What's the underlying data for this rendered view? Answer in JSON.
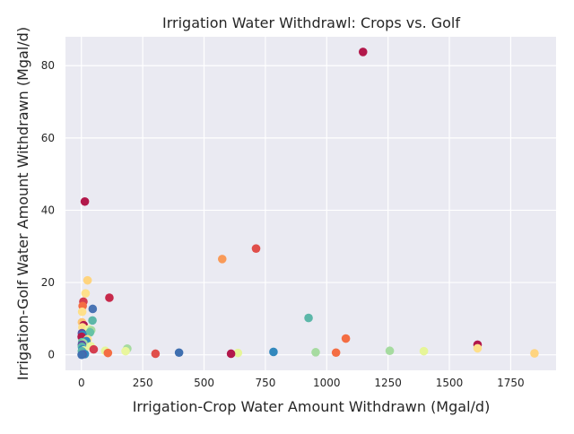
{
  "chart_data": {
    "type": "scatter",
    "title": "Irrigation Water Withdrawl: Crops vs. Golf",
    "xlabel": "Irrigation-Crop Water Amount Withdrawn (Mgal/d)",
    "ylabel": "Irrigation-Golf Water Amount Withdrawn (Mgal/d)",
    "xlim": [
      -65,
      1935
    ],
    "ylim": [
      -4.3,
      88
    ],
    "xticks": [
      0,
      250,
      500,
      750,
      1000,
      1250,
      1500,
      1750
    ],
    "yticks": [
      0,
      20,
      40,
      60,
      80
    ],
    "grid": true,
    "background": "#eaeaf2",
    "points": [
      {
        "x": 1148,
        "y": 83.8,
        "color": "#b2184b"
      },
      {
        "x": 14,
        "y": 42.4,
        "color": "#b2184b"
      },
      {
        "x": 712,
        "y": 29.4,
        "color": "#e04e4a"
      },
      {
        "x": 574,
        "y": 26.5,
        "color": "#f99a58"
      },
      {
        "x": 25,
        "y": 20.6,
        "color": "#fed47f"
      },
      {
        "x": 17,
        "y": 17.0,
        "color": "#fee08b"
      },
      {
        "x": 114,
        "y": 15.8,
        "color": "#c7294b"
      },
      {
        "x": 8,
        "y": 14.7,
        "color": "#d53e4f"
      },
      {
        "x": 5,
        "y": 13.5,
        "color": "#f46d43"
      },
      {
        "x": 46,
        "y": 12.7,
        "color": "#4a74b4"
      },
      {
        "x": 3,
        "y": 11.9,
        "color": "#fee08b"
      },
      {
        "x": 926,
        "y": 10.2,
        "color": "#5cb7a9"
      },
      {
        "x": 45,
        "y": 9.5,
        "color": "#5cb7a9"
      },
      {
        "x": 2,
        "y": 9.0,
        "color": "#fdc575"
      },
      {
        "x": 9,
        "y": 8.2,
        "color": "#b2184b"
      },
      {
        "x": 4,
        "y": 7.6,
        "color": "#fee08b"
      },
      {
        "x": 30,
        "y": 7.1,
        "color": "#e9f69d"
      },
      {
        "x": 40,
        "y": 6.8,
        "color": "#a6dba0"
      },
      {
        "x": 35,
        "y": 6.2,
        "color": "#66c2a5"
      },
      {
        "x": 2,
        "y": 6.0,
        "color": "#5e4fa2"
      },
      {
        "x": 5,
        "y": 5.5,
        "color": "#3288bd"
      },
      {
        "x": 1,
        "y": 5.0,
        "color": "#b2184b"
      },
      {
        "x": 1078,
        "y": 4.5,
        "color": "#f46d43"
      },
      {
        "x": 25,
        "y": 4.3,
        "color": "#fee08b"
      },
      {
        "x": 20,
        "y": 3.8,
        "color": "#3288bd"
      },
      {
        "x": 3,
        "y": 3.5,
        "color": "#66c2a5"
      },
      {
        "x": 8,
        "y": 3.2,
        "color": "#a6dba0"
      },
      {
        "x": 2,
        "y": 2.8,
        "color": "#5e4fa2"
      },
      {
        "x": 1615,
        "y": 2.8,
        "color": "#b2184b"
      },
      {
        "x": 38,
        "y": 2.4,
        "color": "#e9f69d"
      },
      {
        "x": 2,
        "y": 2.2,
        "color": "#5cb7a9"
      },
      {
        "x": 1615,
        "y": 1.8,
        "color": "#fee08b"
      },
      {
        "x": 187,
        "y": 1.7,
        "color": "#a6dba0"
      },
      {
        "x": 50,
        "y": 1.5,
        "color": "#d53e4f"
      },
      {
        "x": 4,
        "y": 1.5,
        "color": "#3288bd"
      },
      {
        "x": 10,
        "y": 1.2,
        "color": "#e9f69d"
      },
      {
        "x": 1257,
        "y": 1.1,
        "color": "#a6dba0"
      },
      {
        "x": 97,
        "y": 1.1,
        "color": "#e6f598"
      },
      {
        "x": 180,
        "y": 1.0,
        "color": "#e9f69d"
      },
      {
        "x": 1396,
        "y": 1.0,
        "color": "#e6f598"
      },
      {
        "x": 2,
        "y": 1.0,
        "color": "#5cb7a9"
      },
      {
        "x": 783,
        "y": 0.8,
        "color": "#3288bd"
      },
      {
        "x": 955,
        "y": 0.7,
        "color": "#a6dba0"
      },
      {
        "x": 398,
        "y": 0.6,
        "color": "#3f6fb0"
      },
      {
        "x": 1038,
        "y": 0.6,
        "color": "#f46d43"
      },
      {
        "x": 108,
        "y": 0.5,
        "color": "#f46d43"
      },
      {
        "x": 638,
        "y": 0.5,
        "color": "#e6f598"
      },
      {
        "x": 1847,
        "y": 0.4,
        "color": "#fed47f"
      },
      {
        "x": 302,
        "y": 0.3,
        "color": "#e04e4a"
      },
      {
        "x": 610,
        "y": 0.3,
        "color": "#b2184b"
      },
      {
        "x": 14,
        "y": 0.2,
        "color": "#3288bd"
      },
      {
        "x": 4,
        "y": 0.1,
        "color": "#5e4fa2"
      },
      {
        "x": 1,
        "y": 0.0,
        "color": "#3f6fb0"
      }
    ]
  }
}
